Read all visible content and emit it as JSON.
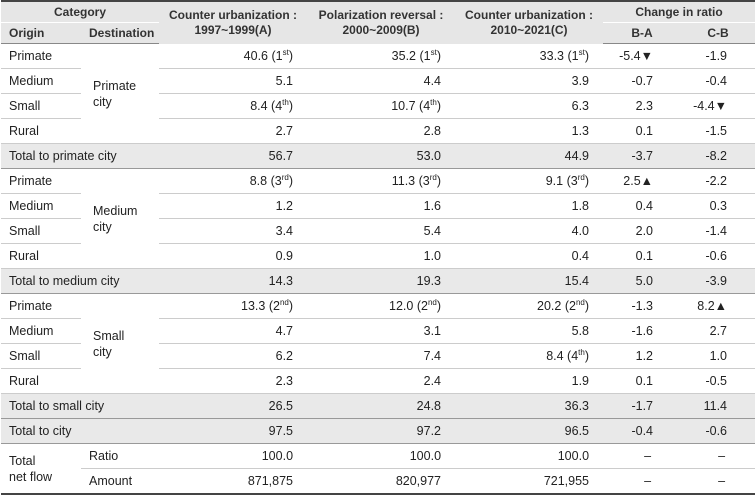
{
  "headers": {
    "category": "Category",
    "origin": "Origin",
    "destination": "Destination",
    "period1_line1": "Counter urbanization :",
    "period1_line2": "1997~1999(A)",
    "period2_line1": "Polarization reversal :",
    "period2_line2": "2000~2009(B)",
    "period3_line1": "Counter urbanization :",
    "period3_line2": "2010~2021(C)",
    "change": "Change in ratio",
    "ba": "B-A",
    "cb": "C-B"
  },
  "groups": [
    {
      "destination_line1": "Primate",
      "destination_line2": "city",
      "rows": [
        {
          "origin": "Primate",
          "a": "40.6",
          "a_rank": "1",
          "a_suffix": "st",
          "b": "35.2",
          "b_rank": "1",
          "b_suffix": "st",
          "c": "33.3",
          "c_rank": "1",
          "c_suffix": "st",
          "ba": "-5.4▼",
          "cb": "-1.9"
        },
        {
          "origin": "Medium",
          "a": "5.1",
          "b": "4.4",
          "c": "3.9",
          "ba": "-0.7",
          "cb": "-0.4"
        },
        {
          "origin": "Small",
          "a": "8.4",
          "a_rank": "4",
          "a_suffix": "th",
          "b": "10.7",
          "b_rank": "4",
          "b_suffix": "th",
          "c": "6.3",
          "ba": "2.3",
          "cb": "-4.4▼"
        },
        {
          "origin": "Rural",
          "a": "2.7",
          "b": "2.8",
          "c": "1.3",
          "ba": "0.1",
          "cb": "-1.5"
        }
      ],
      "total": {
        "label": "Total to primate city",
        "a": "56.7",
        "b": "53.0",
        "c": "44.9",
        "ba": "-3.7",
        "cb": "-8.2"
      }
    },
    {
      "destination_line1": "Medium",
      "destination_line2": "city",
      "rows": [
        {
          "origin": "Primate",
          "a": "8.8",
          "a_rank": "3",
          "a_suffix": "rd",
          "b": "11.3",
          "b_rank": "3",
          "b_suffix": "rd",
          "c": "9.1",
          "c_rank": "3",
          "c_suffix": "rd",
          "ba": "2.5▲",
          "cb": "-2.2"
        },
        {
          "origin": "Medium",
          "a": "1.2",
          "b": "1.6",
          "c": "1.8",
          "ba": "0.4",
          "cb": "0.3"
        },
        {
          "origin": "Small",
          "a": "3.4",
          "b": "5.4",
          "c": "4.0",
          "ba": "2.0",
          "cb": "-1.4"
        },
        {
          "origin": "Rural",
          "a": "0.9",
          "b": "1.0",
          "c": "0.4",
          "ba": "0.1",
          "cb": "-0.6"
        }
      ],
      "total": {
        "label": "Total to medium city",
        "a": "14.3",
        "b": "19.3",
        "c": "15.4",
        "ba": "5.0",
        "cb": "-3.9"
      }
    },
    {
      "destination_line1": "Small",
      "destination_line2": "city",
      "rows": [
        {
          "origin": "Primate",
          "a": "13.3",
          "a_rank": "2",
          "a_suffix": "nd",
          "b": "12.0",
          "b_rank": "2",
          "b_suffix": "nd",
          "c": "20.2",
          "c_rank": "2",
          "c_suffix": "nd",
          "ba": "-1.3",
          "cb": "8.2▲"
        },
        {
          "origin": "Medium",
          "a": "4.7",
          "b": "3.1",
          "c": "5.8",
          "ba": "-1.6",
          "cb": "2.7"
        },
        {
          "origin": "Small",
          "a": "6.2",
          "b": "7.4",
          "c": "8.4",
          "c_rank": "4",
          "c_suffix": "th",
          "ba": "1.2",
          "cb": "1.0"
        },
        {
          "origin": "Rural",
          "a": "2.3",
          "b": "2.4",
          "c": "1.9",
          "ba": "0.1",
          "cb": "-0.5"
        }
      ],
      "total": {
        "label": "Total to small city",
        "a": "26.5",
        "b": "24.8",
        "c": "36.3",
        "ba": "-1.7",
        "cb": "11.4"
      }
    }
  ],
  "total_city": {
    "label": "Total to city",
    "a": "97.5",
    "b": "97.2",
    "c": "96.5",
    "ba": "-0.4",
    "cb": "-0.6"
  },
  "net_flow": {
    "label_line1": "Total",
    "label_line2": "net flow",
    "ratio": {
      "label": "Ratio",
      "a": "100.0",
      "b": "100.0",
      "c": "100.0",
      "ba": "–",
      "cb": "–"
    },
    "amount": {
      "label": "Amount",
      "a": "871,875",
      "b": "820,977",
      "c": "721,955",
      "ba": "–",
      "cb": "–"
    }
  }
}
